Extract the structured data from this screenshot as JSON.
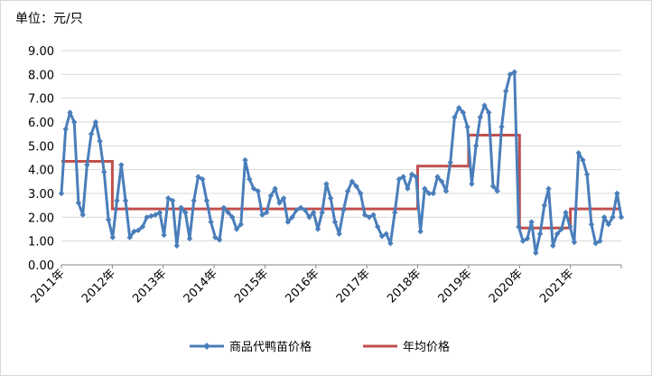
{
  "chart_data": {
    "type": "line",
    "unit_label": "单位：元/只",
    "ylim": [
      0,
      9
    ],
    "yticks": [
      "0.00",
      "1.00",
      "2.00",
      "3.00",
      "4.00",
      "5.00",
      "6.00",
      "7.00",
      "8.00",
      "9.00"
    ],
    "grid": true,
    "legend_position": "bottom",
    "x_labels": [
      "2011年",
      "2012年",
      "2013年",
      "2014年",
      "2015年",
      "2016年",
      "2017年",
      "2018年",
      "2019年",
      "2020年",
      "2021年"
    ],
    "series": [
      {
        "name": "商品代鸭苗价格",
        "color": "#4a7ebb",
        "marker": "diamond",
        "values": [
          3.0,
          5.7,
          6.4,
          6.0,
          2.6,
          2.1,
          4.2,
          5.5,
          6.0,
          5.2,
          3.9,
          1.9,
          1.15,
          2.7,
          4.2,
          2.7,
          1.15,
          1.4,
          1.45,
          1.6,
          2.0,
          2.05,
          2.1,
          2.2,
          1.25,
          2.8,
          2.7,
          0.8,
          2.4,
          2.2,
          1.1,
          2.7,
          3.7,
          3.6,
          2.7,
          1.8,
          1.15,
          1.05,
          2.4,
          2.2,
          2.0,
          1.5,
          1.7,
          4.4,
          3.6,
          3.2,
          3.1,
          2.1,
          2.2,
          2.9,
          3.2,
          2.6,
          2.8,
          1.8,
          2.0,
          2.3,
          2.4,
          2.3,
          2.0,
          2.2,
          1.5,
          2.2,
          3.4,
          2.8,
          1.8,
          1.3,
          2.3,
          3.1,
          3.5,
          3.3,
          3.0,
          2.1,
          2.0,
          2.1,
          1.6,
          1.2,
          1.3,
          0.9,
          2.2,
          3.6,
          3.7,
          3.2,
          3.8,
          3.7,
          1.4,
          3.2,
          3.0,
          3.0,
          3.7,
          3.5,
          3.1,
          4.3,
          6.2,
          6.6,
          6.4,
          5.8,
          3.4,
          5.0,
          6.2,
          6.7,
          6.4,
          3.3,
          3.1,
          5.8,
          7.3,
          8.0,
          8.1,
          1.6,
          1.0,
          1.1,
          1.8,
          0.5,
          1.3,
          2.5,
          3.2,
          0.8,
          1.3,
          1.5,
          2.2,
          1.6,
          0.95,
          4.7,
          4.4,
          3.8,
          1.7,
          0.9,
          1.0,
          2.0,
          1.7,
          2.0,
          3.0,
          2.0
        ]
      },
      {
        "name": "年均价格",
        "color": "#c0504d",
        "marker": "none",
        "values": [
          4.35,
          2.35,
          2.35,
          2.35,
          2.35,
          2.35,
          2.35,
          4.15,
          5.45,
          1.55,
          2.35
        ]
      }
    ]
  }
}
